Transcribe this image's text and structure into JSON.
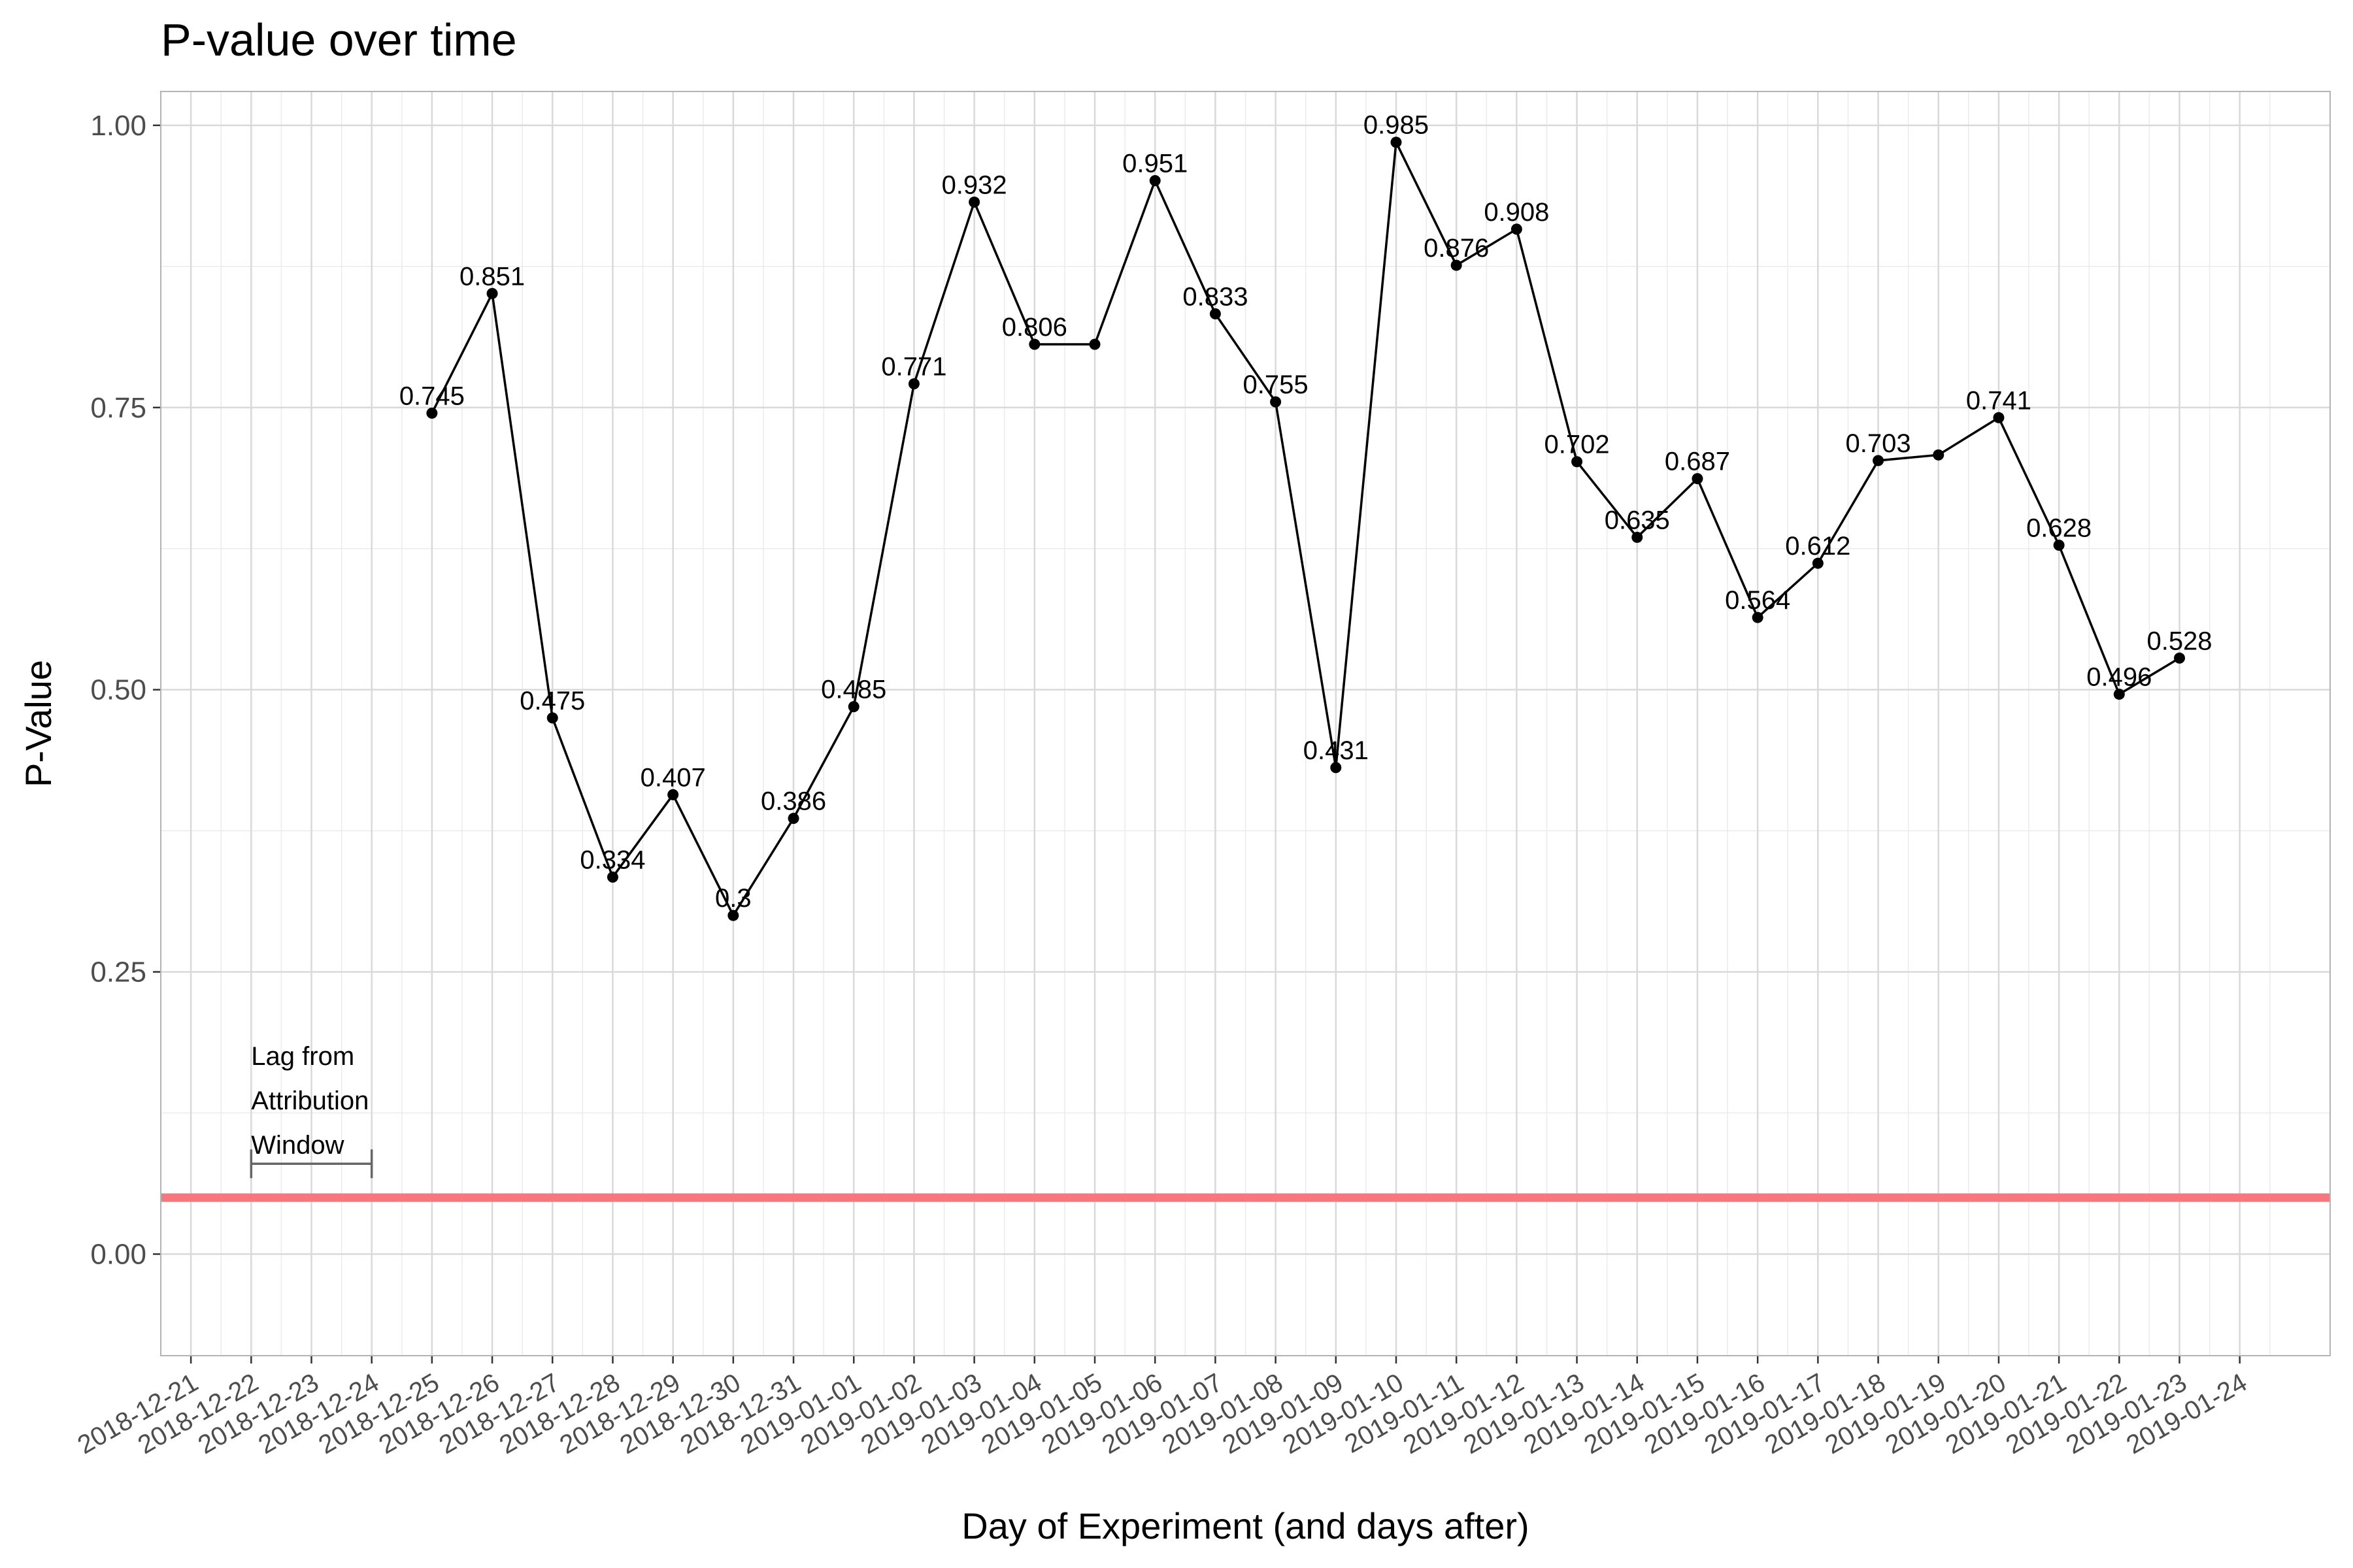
{
  "chart_data": {
    "type": "line",
    "title": "P-value over time",
    "xlabel": "Day of Experiment (and days after)",
    "ylabel": "P-Value",
    "ylim": [
      -0.09,
      1.03
    ],
    "y_ticks": [
      "0.00",
      "0.25",
      "0.50",
      "0.75",
      "1.00"
    ],
    "x_categories": [
      "2018-12-21",
      "2018-12-22",
      "2018-12-23",
      "2018-12-24",
      "2018-12-25",
      "2018-12-26",
      "2018-12-27",
      "2018-12-28",
      "2018-12-29",
      "2018-12-30",
      "2018-12-31",
      "2019-01-01",
      "2019-01-02",
      "2019-01-03",
      "2019-01-04",
      "2019-01-05",
      "2019-01-06",
      "2019-01-07",
      "2019-01-08",
      "2019-01-09",
      "2019-01-10",
      "2019-01-11",
      "2019-01-12",
      "2019-01-13",
      "2019-01-14",
      "2019-01-15",
      "2019-01-16",
      "2019-01-17",
      "2019-01-18",
      "2019-01-19",
      "2019-01-20",
      "2019-01-21",
      "2019-01-22",
      "2019-01-23",
      "2019-01-24"
    ],
    "x_extent": [
      "2018-12-21",
      "2019-01-26"
    ],
    "grid": true,
    "series": [
      {
        "color": "#000000",
        "points": [
          {
            "x": "2018-12-25",
            "y": 0.745,
            "label": "0.745"
          },
          {
            "x": "2018-12-26",
            "y": 0.851,
            "label": "0.851"
          },
          {
            "x": "2018-12-27",
            "y": 0.475,
            "label": "0.475"
          },
          {
            "x": "2018-12-28",
            "y": 0.334,
            "label": "0.334"
          },
          {
            "x": "2018-12-29",
            "y": 0.407,
            "label": "0.407"
          },
          {
            "x": "2018-12-30",
            "y": 0.3,
            "label": "0.3"
          },
          {
            "x": "2018-12-31",
            "y": 0.386,
            "label": "0.386"
          },
          {
            "x": "2019-01-01",
            "y": 0.485,
            "label": "0.485"
          },
          {
            "x": "2019-01-02",
            "y": 0.771,
            "label": "0.771"
          },
          {
            "x": "2019-01-03",
            "y": 0.932,
            "label": "0.932"
          },
          {
            "x": "2019-01-04",
            "y": 0.806,
            "label": "0.806"
          },
          {
            "x": "2019-01-05",
            "y": 0.806,
            "label": ""
          },
          {
            "x": "2019-01-06",
            "y": 0.951,
            "label": "0.951"
          },
          {
            "x": "2019-01-07",
            "y": 0.833,
            "label": "0.833"
          },
          {
            "x": "2019-01-08",
            "y": 0.755,
            "label": "0.755"
          },
          {
            "x": "2019-01-09",
            "y": 0.431,
            "label": "0.431"
          },
          {
            "x": "2019-01-10",
            "y": 0.985,
            "label": "0.985"
          },
          {
            "x": "2019-01-11",
            "y": 0.876,
            "label": "0.876"
          },
          {
            "x": "2019-01-12",
            "y": 0.908,
            "label": "0.908"
          },
          {
            "x": "2019-01-13",
            "y": 0.702,
            "label": "0.702"
          },
          {
            "x": "2019-01-14",
            "y": 0.635,
            "label": "0.635"
          },
          {
            "x": "2019-01-15",
            "y": 0.687,
            "label": "0.687"
          },
          {
            "x": "2019-01-16",
            "y": 0.564,
            "label": "0.564"
          },
          {
            "x": "2019-01-17",
            "y": 0.612,
            "label": "0.612"
          },
          {
            "x": "2019-01-18",
            "y": 0.703,
            "label": "0.703"
          },
          {
            "x": "2019-01-19",
            "y": 0.708,
            "label": ""
          },
          {
            "x": "2019-01-20",
            "y": 0.741,
            "label": "0.741"
          },
          {
            "x": "2019-01-21",
            "y": 0.628,
            "label": "0.628"
          },
          {
            "x": "2019-01-22",
            "y": 0.496,
            "label": "0.496"
          },
          {
            "x": "2019-01-23",
            "y": 0.528,
            "label": "0.528"
          }
        ]
      }
    ],
    "reference_line": {
      "y": 0.05,
      "color": "#F8767D"
    },
    "annotation": {
      "lines": [
        "Lag from",
        "Attribution",
        "Window"
      ],
      "range": {
        "x_start": "2018-12-22",
        "x_end": "2018-12-24",
        "y": 0.08
      },
      "color": "#666666"
    }
  }
}
